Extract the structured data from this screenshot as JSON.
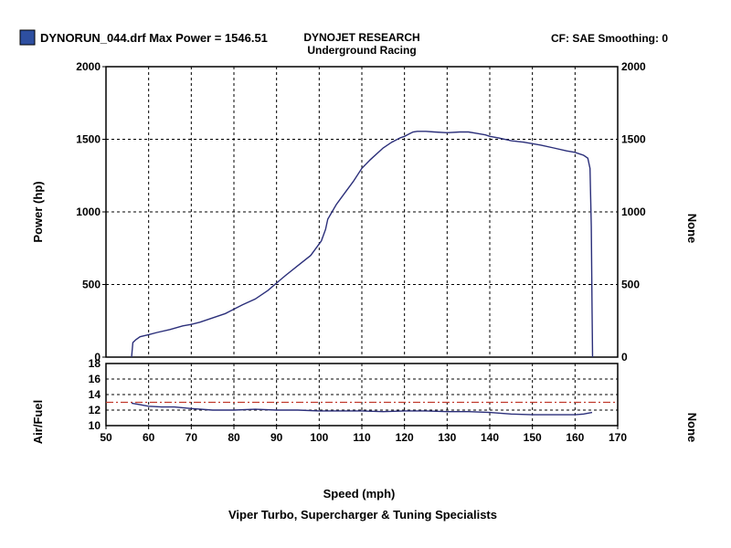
{
  "header": {
    "file_label": "DYNORUN_044.drf Max Power = 1546.51",
    "brand_line1": "DYNOJET RESEARCH",
    "brand_line2": "Underground Racing",
    "cf_label": "CF: SAE  Smoothing: 0",
    "legend_swatch_color": "#2e4fa0"
  },
  "footer": {
    "caption": "Viper Turbo, Supercharger & Tuning Specialists"
  },
  "colors": {
    "curve": "#2b2f7a",
    "reference_line": "#c0392b",
    "grid": "#000000"
  },
  "chart_data": [
    {
      "type": "line",
      "name": "power",
      "xlabel": "Speed (mph)",
      "ylabel": "Power (hp)",
      "y2label": "None",
      "xlim": [
        50,
        170
      ],
      "ylim": [
        0,
        2000
      ],
      "y_ticks": [
        "0",
        "500",
        "1000",
        "1500",
        "2000"
      ],
      "y2_ticks": [
        "0",
        "500",
        "1000",
        "1500",
        "2000"
      ],
      "grid": true,
      "series": [
        {
          "x": [
            56.0,
            56.3,
            57,
            58,
            60,
            62,
            65,
            68,
            70,
            72,
            75,
            78,
            80,
            82,
            85,
            88,
            90,
            92,
            95,
            98,
            100.5,
            101.5,
            102,
            104,
            106,
            108,
            110,
            112,
            115,
            117,
            119,
            120,
            121,
            122,
            123,
            125,
            127,
            130,
            133,
            135,
            137,
            139,
            140,
            142,
            145,
            148,
            150,
            152,
            155,
            158,
            160,
            161,
            162,
            163,
            163.5,
            163.8,
            164.0,
            164.1
          ],
          "y": [
            0,
            100,
            120,
            140,
            155,
            170,
            190,
            215,
            225,
            240,
            270,
            300,
            330,
            360,
            400,
            460,
            510,
            560,
            630,
            700,
            800,
            880,
            950,
            1050,
            1130,
            1210,
            1300,
            1360,
            1440,
            1480,
            1510,
            1520,
            1535,
            1550,
            1555,
            1555,
            1550,
            1545,
            1550,
            1550,
            1540,
            1530,
            1520,
            1510,
            1490,
            1480,
            1470,
            1460,
            1440,
            1420,
            1410,
            1400,
            1390,
            1370,
            1300,
            900,
            300,
            0
          ]
        }
      ]
    },
    {
      "type": "line",
      "name": "air-fuel",
      "xlabel": "Speed (mph)",
      "ylabel": "Air/Fuel",
      "y2label": "None",
      "xlim": [
        50,
        170
      ],
      "ylim": [
        10,
        18
      ],
      "x_ticks": [
        "50",
        "60",
        "70",
        "80",
        "90",
        "100",
        "110",
        "120",
        "130",
        "140",
        "150",
        "160",
        "170"
      ],
      "y_ticks": [
        "10",
        "12",
        "14",
        "16",
        "18"
      ],
      "reference_value": 13,
      "grid": true,
      "series": [
        {
          "x": [
            56,
            58,
            60,
            63,
            66,
            70,
            75,
            80,
            85,
            90,
            95,
            100,
            105,
            110,
            115,
            120,
            125,
            130,
            135,
            140,
            145,
            150,
            155,
            160,
            162,
            164
          ],
          "y": [
            12.9,
            12.7,
            12.5,
            12.4,
            12.4,
            12.2,
            12.0,
            12.0,
            12.1,
            12.0,
            12.0,
            11.9,
            11.9,
            11.9,
            11.8,
            11.9,
            11.9,
            11.8,
            11.8,
            11.7,
            11.5,
            11.4,
            11.4,
            11.4,
            11.5,
            11.7
          ]
        }
      ]
    }
  ]
}
